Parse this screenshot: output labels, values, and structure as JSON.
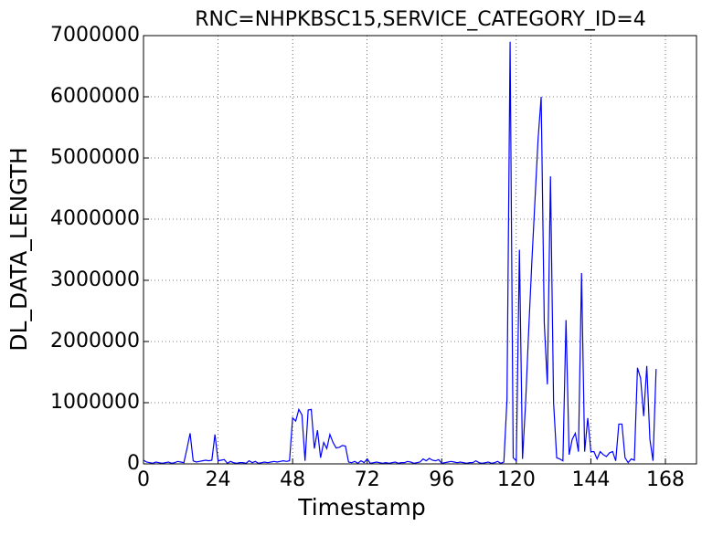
{
  "chart_data": {
    "type": "line",
    "title": "RNC=NHPKBSC15,SERVICE_CATEGORY_ID=4",
    "x_label": "Timestamp",
    "y_label": "DL_DATA_LENGTH",
    "xlim": [
      0,
      178
    ],
    "xticks": [
      0,
      24,
      48,
      72,
      96,
      120,
      144,
      168
    ],
    "ylim": [
      0,
      7000000
    ],
    "yticks": [
      0,
      1000000,
      2000000,
      3000000,
      4000000,
      5000000,
      6000000,
      7000000
    ],
    "grid": true,
    "x": [
      0,
      1,
      2,
      3,
      4,
      5,
      6,
      7,
      8,
      9,
      10,
      11,
      12,
      13,
      14,
      15,
      16,
      17,
      18,
      19,
      20,
      21,
      22,
      23,
      24,
      25,
      26,
      27,
      28,
      29,
      30,
      31,
      32,
      33,
      34,
      35,
      36,
      37,
      38,
      39,
      40,
      41,
      42,
      43,
      44,
      45,
      46,
      47,
      48,
      49,
      50,
      51,
      52,
      53,
      54,
      55,
      56,
      57,
      58,
      59,
      60,
      61,
      62,
      63,
      64,
      65,
      66,
      67,
      68,
      69,
      70,
      71,
      72,
      73,
      74,
      75,
      76,
      77,
      78,
      79,
      80,
      81,
      82,
      83,
      84,
      85,
      86,
      87,
      88,
      89,
      90,
      91,
      92,
      93,
      94,
      95,
      96,
      97,
      98,
      99,
      100,
      101,
      102,
      103,
      104,
      105,
      106,
      107,
      108,
      109,
      110,
      111,
      112,
      113,
      114,
      115,
      116,
      117,
      118,
      119,
      120,
      121,
      122,
      123,
      124,
      125,
      126,
      127,
      128,
      129,
      130,
      131,
      132,
      133,
      134,
      135,
      136,
      137,
      138,
      139,
      140,
      141,
      142,
      143,
      144,
      145,
      146,
      147,
      148,
      149,
      150,
      151,
      152,
      153,
      154,
      155,
      156,
      157,
      158,
      159,
      160,
      161,
      162,
      163,
      164,
      165
    ],
    "series": [
      {
        "name": "DL_DATA_LENGTH",
        "color": "#0000ff",
        "values": [
          60000,
          30000,
          20000,
          10000,
          30000,
          20000,
          10000,
          20000,
          30000,
          10000,
          20000,
          40000,
          30000,
          20000,
          250000,
          500000,
          50000,
          30000,
          40000,
          50000,
          60000,
          50000,
          60000,
          480000,
          50000,
          60000,
          70000,
          10000,
          40000,
          20000,
          10000,
          20000,
          20000,
          10000,
          50000,
          20000,
          40000,
          10000,
          20000,
          30000,
          20000,
          30000,
          40000,
          30000,
          40000,
          50000,
          40000,
          50000,
          750000,
          700000,
          890000,
          800000,
          50000,
          880000,
          890000,
          250000,
          550000,
          100000,
          350000,
          250000,
          480000,
          350000,
          260000,
          270000,
          300000,
          290000,
          30000,
          20000,
          40000,
          10000,
          50000,
          20000,
          80000,
          10000,
          20000,
          30000,
          20000,
          10000,
          20000,
          10000,
          20000,
          30000,
          10000,
          20000,
          20000,
          40000,
          30000,
          10000,
          20000,
          30000,
          80000,
          50000,
          90000,
          60000,
          50000,
          70000,
          10000,
          20000,
          30000,
          40000,
          30000,
          20000,
          30000,
          20000,
          10000,
          20000,
          20000,
          50000,
          20000,
          10000,
          20000,
          30000,
          10000,
          20000,
          40000,
          10000,
          30000,
          1050000,
          6900000,
          100000,
          50000,
          3500000,
          80000,
          1000000,
          2200000,
          3300000,
          4300000,
          5300000,
          6000000,
          2300000,
          1300000,
          4700000,
          1000000,
          100000,
          80000,
          50000,
          2350000,
          150000,
          400000,
          500000,
          200000,
          3120000,
          200000,
          750000,
          200000,
          200000,
          80000,
          200000,
          150000,
          120000,
          180000,
          200000,
          50000,
          650000,
          650000,
          100000,
          20000,
          80000,
          60000,
          1570000,
          1400000,
          780000,
          1600000,
          400000,
          50000,
          1550000
        ]
      }
    ]
  }
}
